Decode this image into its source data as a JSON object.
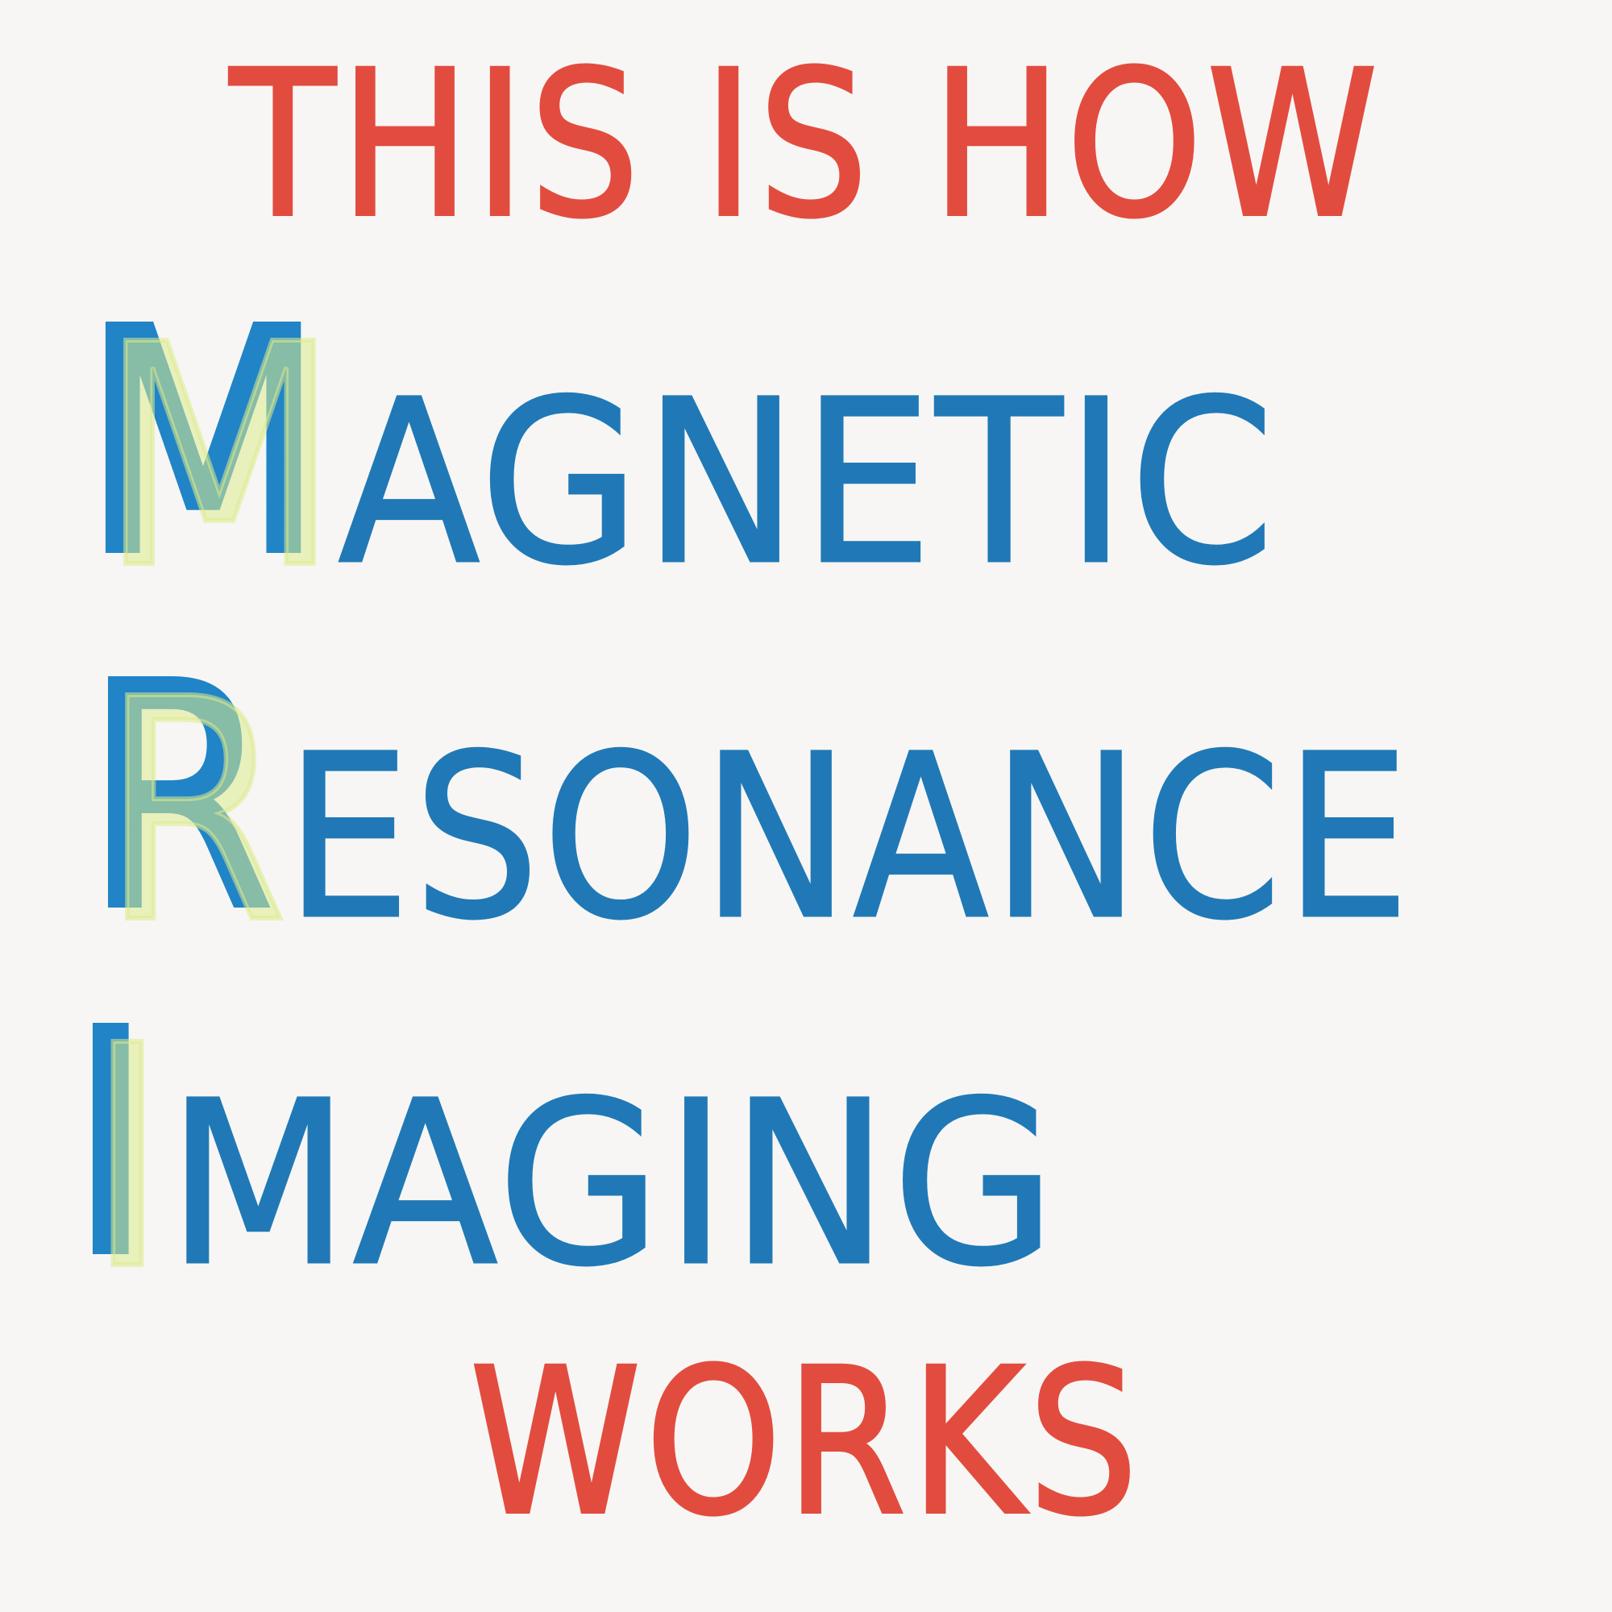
{
  "lines": {
    "line1": "THIS IS HOW",
    "magnetic": {
      "initial": "M",
      "rest": "AGNETIC"
    },
    "resonance": {
      "initial": "R",
      "rest": "ESONANCE"
    },
    "imaging": {
      "initial": "I",
      "rest": "MAGING"
    },
    "line5": "WORKS"
  },
  "colors": {
    "red_text": "#e24c3f",
    "blue_text": "#2079b6",
    "initial_blue": "#2084c7",
    "highlight": "#dcea8c",
    "background": "#f7f6f4"
  }
}
